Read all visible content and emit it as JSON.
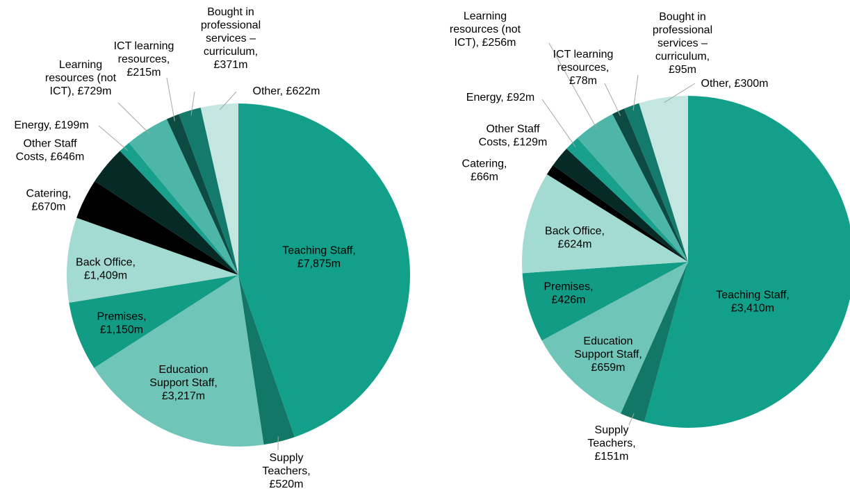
{
  "chart_data": [
    {
      "type": "pie",
      "values": [
        7875,
        520,
        3217,
        1150,
        1409,
        670,
        646,
        199,
        729,
        215,
        371,
        622
      ],
      "value_labels": [
        "Teaching Staff,\n£7,875m",
        "Supply\nTeachers,\n£520m",
        "Education\nSupport Staff,\n£3,217m",
        "Premises,\n£1,150m",
        "Back Office,\n£1,409m",
        "Catering,\n£670m",
        "Other Staff\nCosts, £646m",
        "Energy, £199m",
        "Learning\nresources (not\nICT), £729m",
        "ICT learning\nresources,\n£215m",
        "Bought in\nprofessional\nservices –\ncurriculum,\n£371m",
        "Other, £622m"
      ],
      "colors": [
        "#13a08a",
        "#137767",
        "#6fc5b8",
        "#129b85",
        "#a3dad2",
        "#000000",
        "#062a26",
        "#19a08d",
        "#4db6a8",
        "#0d4a42",
        "#137a6c",
        "#c3e6e1"
      ]
    },
    {
      "type": "pie",
      "values": [
        3410,
        151,
        659,
        426,
        624,
        66,
        129,
        92,
        256,
        78,
        95,
        300
      ],
      "value_labels": [
        "Teaching Staff,\n£3,410m",
        "Supply\nTeachers,\n£151m",
        "Education\nSupport Staff,\n£659m",
        "Premises,\n£426m",
        "Back Office,\n£624m",
        "Catering,\n£66m",
        "Other Staff\nCosts, £129m",
        "Energy, £92m",
        "Learning\nresources (not\nICT), £256m",
        "ICT learning\nresources,\n£78m",
        "Bought in\nprofessional\nservices –\ncurriculum,\n£95m",
        "Other, £300m"
      ],
      "colors": [
        "#13a08a",
        "#137767",
        "#6fc5b8",
        "#129b85",
        "#a3dad2",
        "#000000",
        "#062a26",
        "#19a08d",
        "#4db6a8",
        "#0d4a42",
        "#137a6c",
        "#c3e6e1"
      ]
    }
  ]
}
